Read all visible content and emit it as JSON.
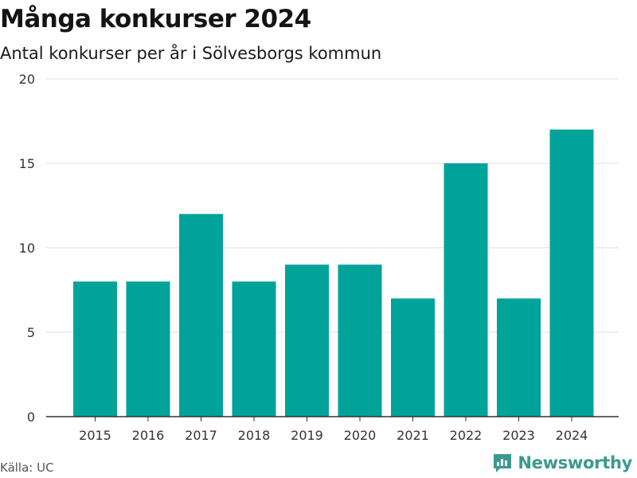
{
  "chart_data": {
    "type": "bar",
    "title": "Många konkurser 2024",
    "subtitle": "Antal konkurser per år i Sölvesborgs kommun",
    "categories": [
      "2015",
      "2016",
      "2017",
      "2018",
      "2019",
      "2020",
      "2021",
      "2022",
      "2023",
      "2024"
    ],
    "values": [
      8,
      8,
      12,
      8,
      9,
      9,
      7,
      15,
      7,
      17
    ],
    "ylim": [
      0,
      20
    ],
    "yticks": [
      "0",
      "5",
      "10",
      "15",
      "20"
    ],
    "grid": true,
    "bar_color": "#00a39a"
  },
  "footer": {
    "source": "Källa: UC",
    "brand": "Newsworthy",
    "brand_color": "#3a9a8f"
  }
}
